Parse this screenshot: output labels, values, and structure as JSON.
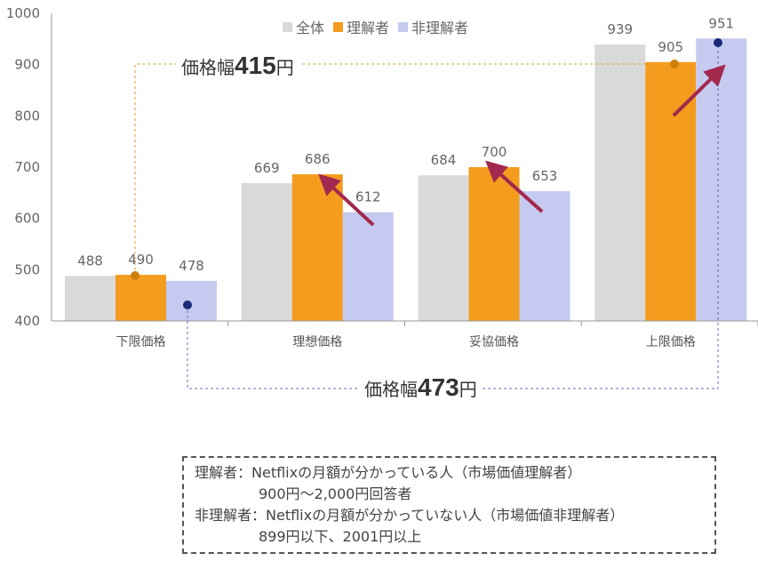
{
  "chart_data": {
    "type": "bar",
    "categories": [
      "下限価格",
      "理想価格",
      "妥協価格",
      "上限価格"
    ],
    "series": [
      {
        "name": "全体",
        "color": "#d9d9d9",
        "values": [
          488,
          669,
          684,
          939
        ]
      },
      {
        "name": "理解者",
        "color": "#f39c1e",
        "values": [
          490,
          686,
          700,
          905
        ]
      },
      {
        "name": "非理解者",
        "color": "#c5cbf0",
        "values": [
          478,
          612,
          653,
          951
        ]
      }
    ],
    "ylim": [
      400,
      1000
    ],
    "yticks": [
      "400",
      "500",
      "600",
      "700",
      "800",
      "900",
      "1000"
    ],
    "legend": "top-center",
    "annotations": {
      "range_understanders": {
        "prefix": "価格幅",
        "value": "415",
        "suffix": "円"
      },
      "range_non_understanders": {
        "prefix": "価格幅",
        "value": "473",
        "suffix": "円"
      }
    }
  },
  "note": {
    "line1": "理解者：Netflixの月額が分かっている人（市場価値理解者）",
    "line2": "900円〜2,000円回答者",
    "line3": "非理解者：Netflixの月額が分かっていない人（市場価値非理解者）",
    "line4": "899円以下、2001円以上"
  }
}
